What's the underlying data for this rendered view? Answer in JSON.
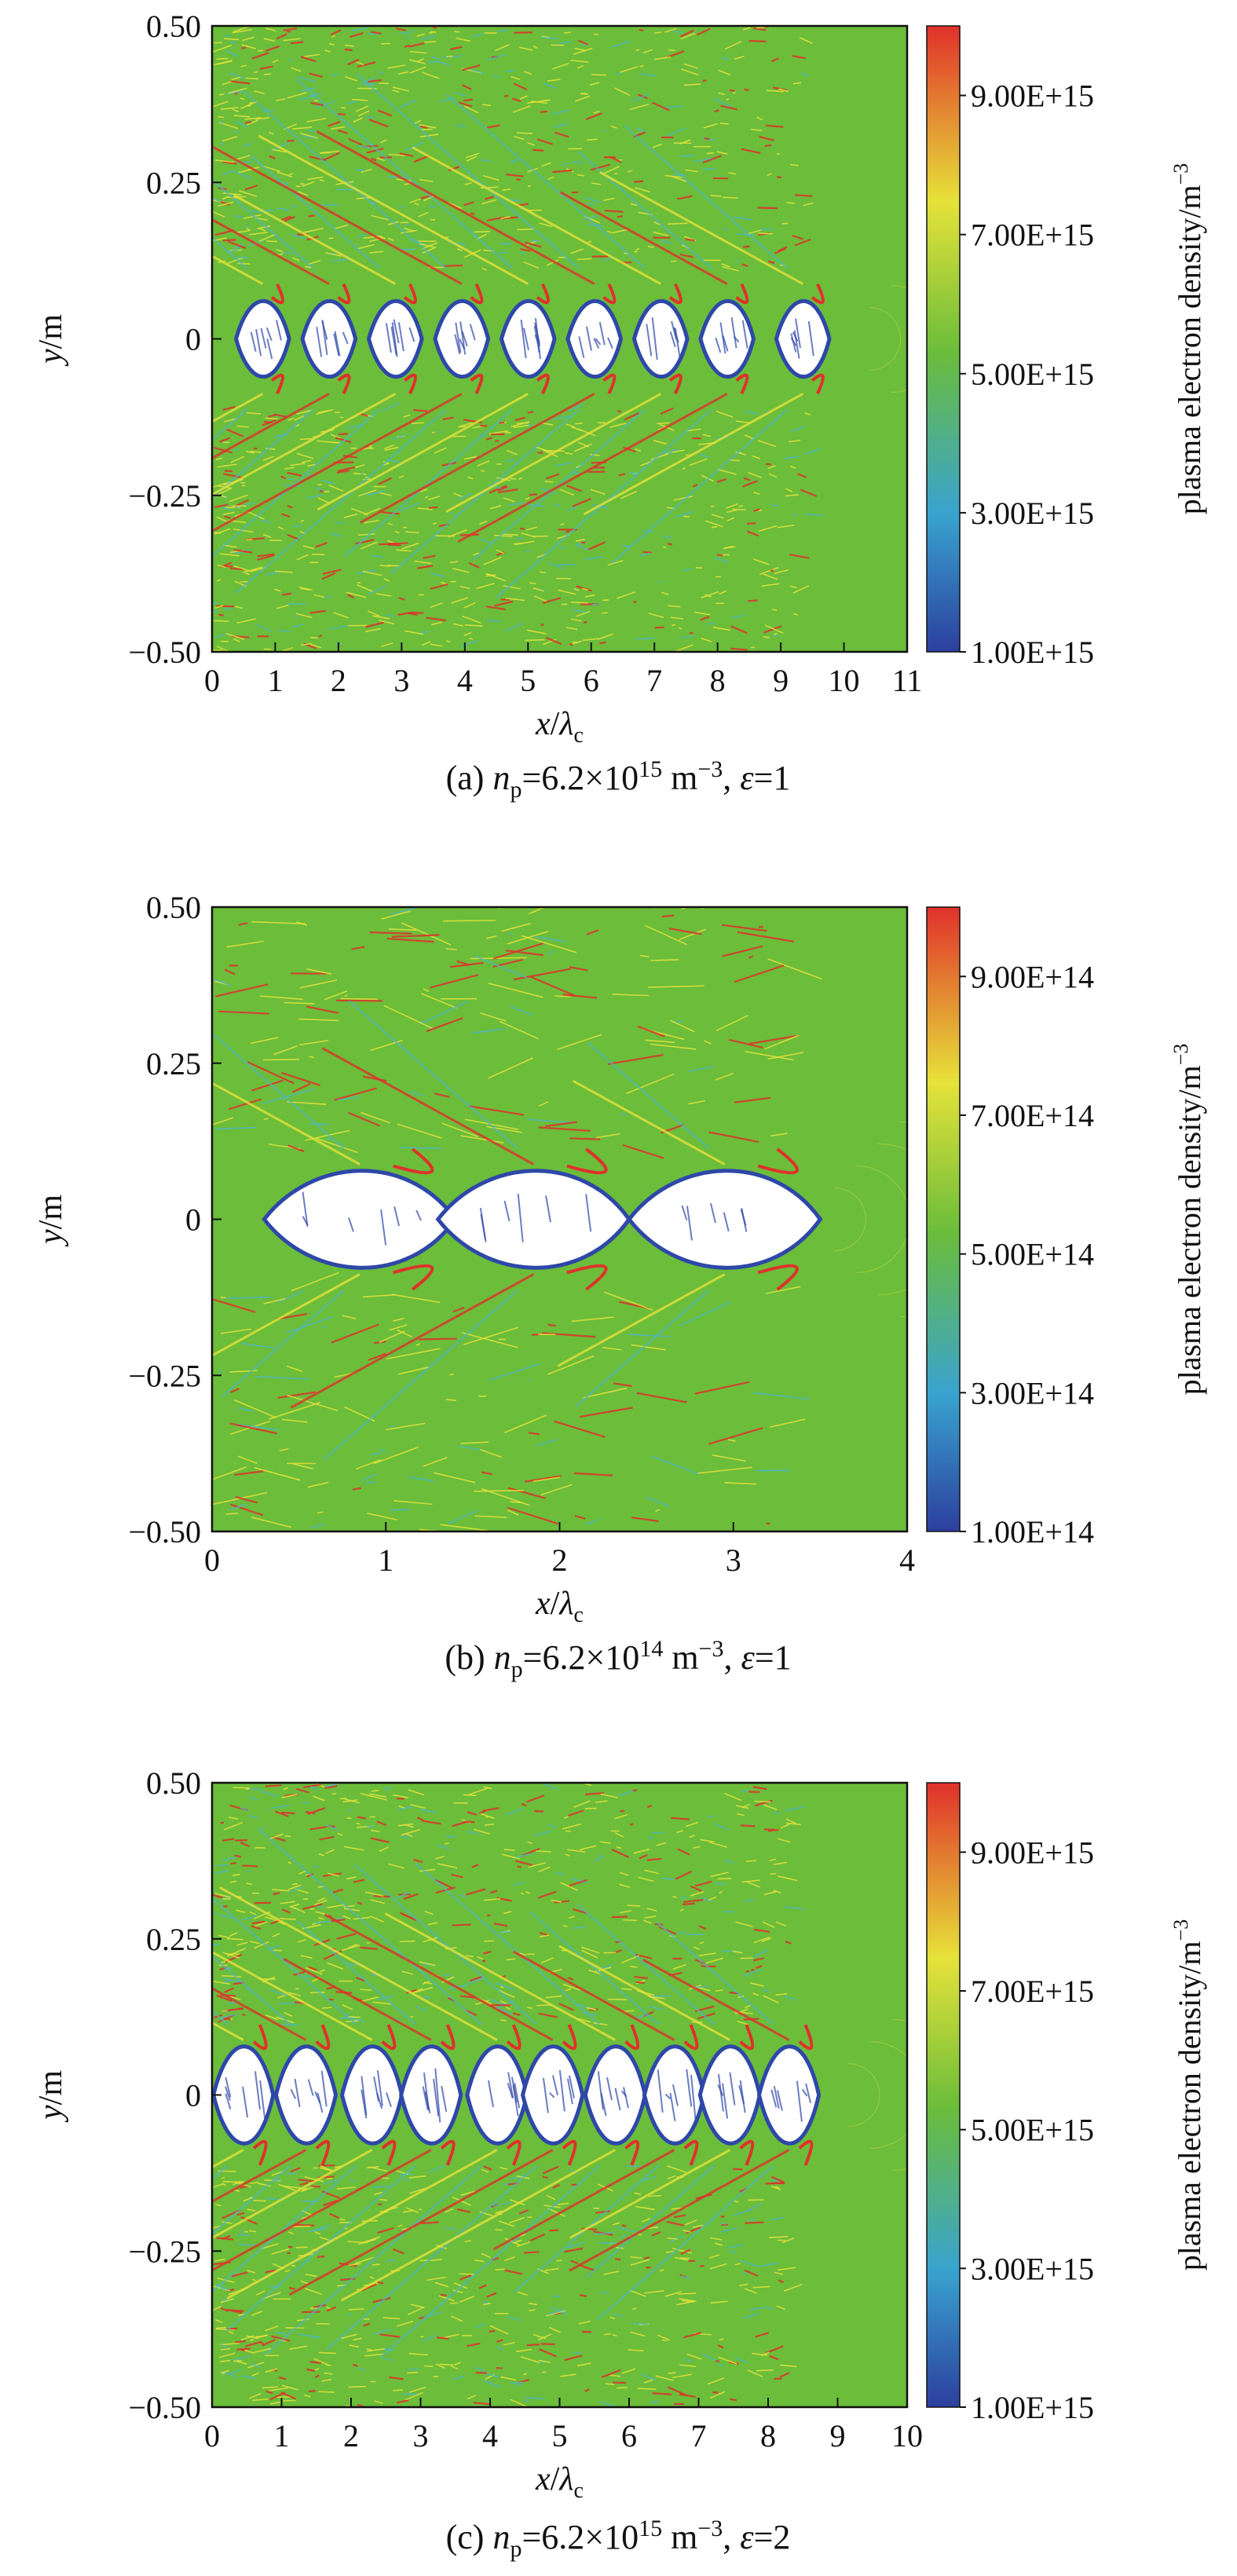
{
  "chart_data": [
    {
      "panel": "a",
      "type": "heatmap",
      "caption": {
        "prefix": "(a) ",
        "n": "n",
        "n_sub": "p",
        "eq": "=6.2×10",
        "exp": "15",
        "unit": " m",
        "unit_exp": "−3",
        "sep": ", ",
        "eps": "ε",
        "eps_val": "=1"
      },
      "xlabel": {
        "main": "x",
        "slash": "/",
        "lambda": "λ",
        "sub": "c"
      },
      "ylabel": "y/m",
      "xlim": [
        0,
        11
      ],
      "ylim": [
        -0.5,
        0.5
      ],
      "xticks": [
        "0",
        "1",
        "2",
        "3",
        "4",
        "5",
        "6",
        "7",
        "8",
        "9",
        "10",
        "11"
      ],
      "yticks": [
        "0.50",
        "0.25",
        "0",
        "−0.25",
        "−0.50"
      ],
      "ytick_values": [
        0.5,
        0.25,
        0,
        -0.25,
        -0.5
      ],
      "colorbar": {
        "label": "plasma electron density/m",
        "label_exp": "−3",
        "ticks": [
          "9.00E+15",
          "7.00E+15",
          "5.00E+15",
          "3.00E+15",
          "1.00E+15"
        ],
        "tick_values": [
          9000000000000000.0,
          7000000000000000.0,
          5000000000000000.0,
          3000000000000000.0,
          1000000000000000.0
        ],
        "range": [
          1000000000000000.0,
          1e+16
        ]
      },
      "bubbles": {
        "centers": [
          0.8,
          1.85,
          2.9,
          3.95,
          5.0,
          6.05,
          7.1,
          8.15,
          9.35
        ],
        "half_width": 0.42,
        "half_height": 0.07
      },
      "edge_x": 9.9
    },
    {
      "panel": "b",
      "type": "heatmap",
      "caption": {
        "prefix": "(b) ",
        "n": "n",
        "n_sub": "p",
        "eq": "=6.2×10",
        "exp": "14",
        "unit": " m",
        "unit_exp": "−3",
        "sep": ", ",
        "eps": "ε",
        "eps_val": "=1"
      },
      "xlabel": {
        "main": "x",
        "slash": "/",
        "lambda": "λ",
        "sub": "c"
      },
      "ylabel": "y/m",
      "xlim": [
        0,
        4
      ],
      "ylim": [
        -0.5,
        0.5
      ],
      "xticks": [
        "0",
        "1",
        "2",
        "3",
        "4"
      ],
      "yticks": [
        "0.50",
        "0.25",
        "0",
        "−0.25",
        "−0.50"
      ],
      "ytick_values": [
        0.5,
        0.25,
        0,
        -0.25,
        -0.5
      ],
      "colorbar": {
        "label": "plasma electron density/m",
        "label_exp": "−3",
        "ticks": [
          "9.00E+14",
          "7.00E+14",
          "5.00E+14",
          "3.00E+14",
          "1.00E+14"
        ],
        "tick_values": [
          900000000000000.0,
          700000000000000.0,
          500000000000000.0,
          300000000000000.0,
          100000000000000.0
        ],
        "range": [
          100000000000000.0,
          1000000000000000.0
        ]
      },
      "bubbles": {
        "centers": [
          0.85,
          1.85,
          2.95
        ],
        "half_width": 0.55,
        "half_height": 0.09
      },
      "edge_x": 3.4
    },
    {
      "panel": "c",
      "type": "heatmap",
      "caption": {
        "prefix": "(c) ",
        "n": "n",
        "n_sub": "p",
        "eq": "=6.2×10",
        "exp": "15",
        "unit": " m",
        "unit_exp": "−3",
        "sep": ", ",
        "eps": "ε",
        "eps_val": "=2"
      },
      "xlabel": {
        "main": "x",
        "slash": "/",
        "lambda": "λ",
        "sub": "c"
      },
      "ylabel": "y/m",
      "xlim": [
        0,
        10
      ],
      "ylim": [
        -0.5,
        0.5
      ],
      "xticks": [
        "0",
        "1",
        "2",
        "3",
        "4",
        "5",
        "6",
        "7",
        "8",
        "9",
        "10"
      ],
      "yticks": [
        "0.50",
        "0.25",
        "0",
        "−0.25",
        "−0.50"
      ],
      "ytick_values": [
        0.5,
        0.25,
        0,
        -0.25,
        -0.5
      ],
      "colorbar": {
        "label": "plasma electron density/m",
        "label_exp": "−3",
        "ticks": [
          "9.00E+15",
          "7.00E+15",
          "5.00E+15",
          "3.00E+15",
          "1.00E+15"
        ],
        "tick_values": [
          9000000000000000.0,
          7000000000000000.0,
          5000000000000000.0,
          3000000000000000.0,
          1000000000000000.0
        ],
        "range": [
          1000000000000000.0,
          1e+16
        ]
      },
      "bubbles": {
        "centers": [
          0.45,
          1.35,
          2.3,
          3.15,
          4.1,
          4.9,
          5.8,
          6.65,
          7.45,
          8.3
        ],
        "half_width": 0.43,
        "half_height": 0.09
      },
      "edge_x": 8.7
    }
  ],
  "colors": {
    "background_plasma": "#6bbd3a",
    "colorbar_stops": [
      "#2c3f9e",
      "#39a3cf",
      "#6bbd3a",
      "#e6e23a",
      "#e0312b"
    ],
    "bubble_edge": "#2e47a8",
    "bubble_fill": "#ffffff",
    "filament_red": "#e0312b",
    "filament_yellow": "#e6e23a",
    "filament_cyan": "#4fb6c9"
  }
}
